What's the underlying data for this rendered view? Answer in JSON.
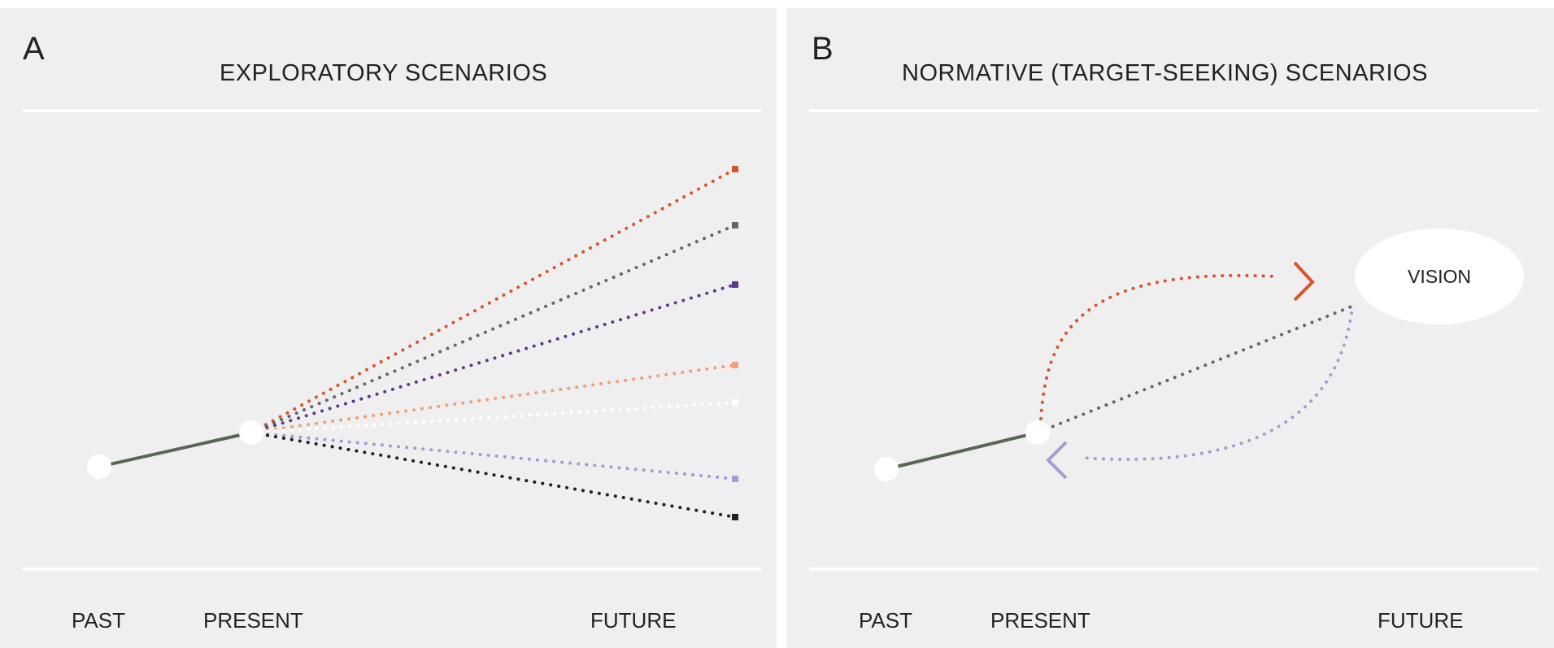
{
  "panel_a": {
    "letter": "A",
    "title": "EXPLORATORY SCENARIOS",
    "axis_labels": {
      "past": "PAST",
      "present": "PRESENT",
      "future": "FUTURE"
    },
    "scenario_colors": [
      "#d9542e",
      "#666666",
      "#5b3a8c",
      "#f0a07a",
      "#ffffff",
      "#a99ad0",
      "#222222"
    ]
  },
  "panel_b": {
    "letter": "B",
    "title": "NORMATIVE (TARGET-SEEKING) SCENARIOS",
    "axis_labels": {
      "past": "PAST",
      "present": "PRESENT",
      "future": "FUTURE"
    },
    "vision_label": "VISION",
    "path_colors": {
      "forward": "#d9542e",
      "direct": "#666666",
      "backcast": "#a99ad0"
    }
  },
  "colors": {
    "background": "#efefef",
    "timeline": "#5a6457",
    "node": "#ffffff"
  }
}
